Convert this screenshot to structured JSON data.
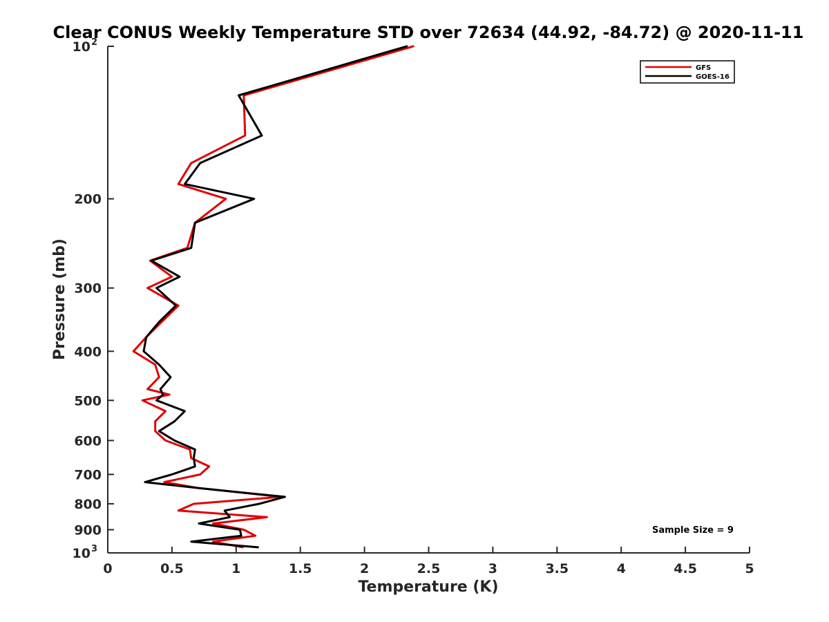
{
  "chart_data": {
    "type": "line",
    "title": "Clear CONUS Weekly Temperature STD over 72634 (44.92, -84.72) @ 2020-11-11",
    "xlabel": "Temperature (K)",
    "ylabel": "Pressure (mb)",
    "xlim": [
      0,
      5
    ],
    "ylim": [
      100,
      1000
    ],
    "y_scale": "log",
    "y_reversed": true,
    "x_ticks": [
      0,
      0.5,
      1,
      1.5,
      2,
      2.5,
      3,
      3.5,
      4,
      4.5,
      5
    ],
    "y_ticks": [
      {
        "value": 100,
        "label": "10",
        "sup": "2"
      },
      {
        "value": 200,
        "label": "200"
      },
      {
        "value": 300,
        "label": "300"
      },
      {
        "value": 400,
        "label": "400"
      },
      {
        "value": 500,
        "label": "500"
      },
      {
        "value": 600,
        "label": "600"
      },
      {
        "value": 700,
        "label": "700"
      },
      {
        "value": 800,
        "label": "800"
      },
      {
        "value": 900,
        "label": "900"
      },
      {
        "value": 1000,
        "label": "10",
        "sup": "3"
      }
    ],
    "grid": false,
    "legend_position": "top-right",
    "annotation": "Sample Size = 9",
    "series": [
      {
        "name": "GFS",
        "color": "#e00000",
        "points": [
          {
            "x": 2.38,
            "p": 100
          },
          {
            "x": 1.06,
            "p": 125
          },
          {
            "x": 1.07,
            "p": 150
          },
          {
            "x": 0.65,
            "p": 170
          },
          {
            "x": 0.55,
            "p": 187
          },
          {
            "x": 0.92,
            "p": 200
          },
          {
            "x": 0.68,
            "p": 223
          },
          {
            "x": 0.62,
            "p": 250
          },
          {
            "x": 0.33,
            "p": 265
          },
          {
            "x": 0.5,
            "p": 285
          },
          {
            "x": 0.31,
            "p": 300
          },
          {
            "x": 0.55,
            "p": 325
          },
          {
            "x": 0.42,
            "p": 350
          },
          {
            "x": 0.3,
            "p": 375
          },
          {
            "x": 0.2,
            "p": 400
          },
          {
            "x": 0.37,
            "p": 425
          },
          {
            "x": 0.4,
            "p": 450
          },
          {
            "x": 0.31,
            "p": 475
          },
          {
            "x": 0.48,
            "p": 487
          },
          {
            "x": 0.27,
            "p": 500
          },
          {
            "x": 0.45,
            "p": 525
          },
          {
            "x": 0.37,
            "p": 550
          },
          {
            "x": 0.37,
            "p": 575
          },
          {
            "x": 0.45,
            "p": 600
          },
          {
            "x": 0.64,
            "p": 625
          },
          {
            "x": 0.65,
            "p": 650
          },
          {
            "x": 0.79,
            "p": 675
          },
          {
            "x": 0.72,
            "p": 700
          },
          {
            "x": 0.44,
            "p": 725
          },
          {
            "x": 0.71,
            "p": 745
          },
          {
            "x": 1.35,
            "p": 775
          },
          {
            "x": 0.67,
            "p": 800
          },
          {
            "x": 0.55,
            "p": 825
          },
          {
            "x": 1.24,
            "p": 850
          },
          {
            "x": 0.82,
            "p": 875
          },
          {
            "x": 1.06,
            "p": 900
          },
          {
            "x": 1.15,
            "p": 925
          },
          {
            "x": 0.82,
            "p": 950
          },
          {
            "x": 1.05,
            "p": 975
          }
        ]
      },
      {
        "name": "GOES-16",
        "color": "#000000",
        "points": [
          {
            "x": 2.33,
            "p": 100
          },
          {
            "x": 1.02,
            "p": 125
          },
          {
            "x": 1.2,
            "p": 150
          },
          {
            "x": 0.72,
            "p": 170
          },
          {
            "x": 0.6,
            "p": 187
          },
          {
            "x": 1.14,
            "p": 200
          },
          {
            "x": 0.68,
            "p": 223
          },
          {
            "x": 0.65,
            "p": 250
          },
          {
            "x": 0.34,
            "p": 265
          },
          {
            "x": 0.56,
            "p": 285
          },
          {
            "x": 0.38,
            "p": 300
          },
          {
            "x": 0.53,
            "p": 325
          },
          {
            "x": 0.4,
            "p": 350
          },
          {
            "x": 0.3,
            "p": 375
          },
          {
            "x": 0.28,
            "p": 400
          },
          {
            "x": 0.4,
            "p": 425
          },
          {
            "x": 0.49,
            "p": 450
          },
          {
            "x": 0.41,
            "p": 475
          },
          {
            "x": 0.43,
            "p": 487
          },
          {
            "x": 0.38,
            "p": 500
          },
          {
            "x": 0.6,
            "p": 525
          },
          {
            "x": 0.52,
            "p": 550
          },
          {
            "x": 0.4,
            "p": 575
          },
          {
            "x": 0.52,
            "p": 600
          },
          {
            "x": 0.68,
            "p": 625
          },
          {
            "x": 0.67,
            "p": 650
          },
          {
            "x": 0.68,
            "p": 675
          },
          {
            "x": 0.5,
            "p": 700
          },
          {
            "x": 0.29,
            "p": 725
          },
          {
            "x": 0.71,
            "p": 745
          },
          {
            "x": 1.38,
            "p": 775
          },
          {
            "x": 1.18,
            "p": 800
          },
          {
            "x": 0.91,
            "p": 825
          },
          {
            "x": 0.95,
            "p": 850
          },
          {
            "x": 0.71,
            "p": 875
          },
          {
            "x": 1.03,
            "p": 900
          },
          {
            "x": 1.04,
            "p": 925
          },
          {
            "x": 0.65,
            "p": 950
          },
          {
            "x": 1.17,
            "p": 975
          }
        ]
      }
    ]
  }
}
